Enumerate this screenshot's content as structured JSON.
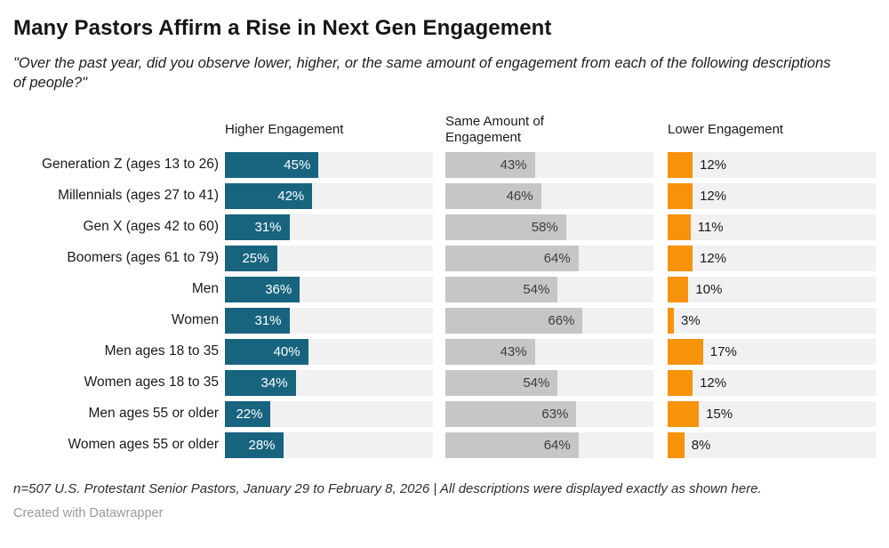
{
  "header": {
    "title": "Many Pastors Affirm a Rise in Next Gen Engagement",
    "subtitle": "\"Over the past year, did you observe lower, higher, or the same amount of engagement from each of the following descriptions of people?\""
  },
  "chart_data": {
    "type": "bar",
    "layout": "split-bars-three-columns-horizontal",
    "title": "Many Pastors Affirm a Rise in Next Gen Engagement",
    "xlabel": "",
    "ylabel": "",
    "xlim": [
      0,
      100
    ],
    "value_suffix": "%",
    "grid": false,
    "track_color": "#f1f1f1",
    "categories": [
      "Generation Z (ages 13 to 26)",
      "Millennials (ages 27 to 41)",
      "Gen X (ages 42 to 60)",
      "Boomers (ages 61 to 79)",
      "Men",
      "Women",
      "Men ages 18 to 35",
      "Women ages 18 to 35",
      "Men ages 55 or older",
      "Women ages 55 or older"
    ],
    "series": [
      {
        "name": "Higher Engagement",
        "color": "#18647f",
        "label_position": "inside",
        "values": [
          45,
          42,
          31,
          25,
          36,
          31,
          40,
          34,
          22,
          28
        ]
      },
      {
        "name": "Same Amount of Engagement",
        "color": "#c6c6c6",
        "label_position": "inside",
        "values": [
          43,
          46,
          58,
          64,
          54,
          66,
          43,
          54,
          63,
          64
        ]
      },
      {
        "name": "Lower Engagement",
        "color": "#f7920b",
        "label_position": "outside",
        "values": [
          12,
          12,
          11,
          12,
          10,
          3,
          17,
          12,
          15,
          8
        ]
      }
    ]
  },
  "footer": {
    "note": "n=507 U.S. Protestant Senior Pastors, January 29 to February 8, 2026 | All descriptions were displayed exactly as shown here.",
    "credit": "Created with Datawrapper"
  }
}
